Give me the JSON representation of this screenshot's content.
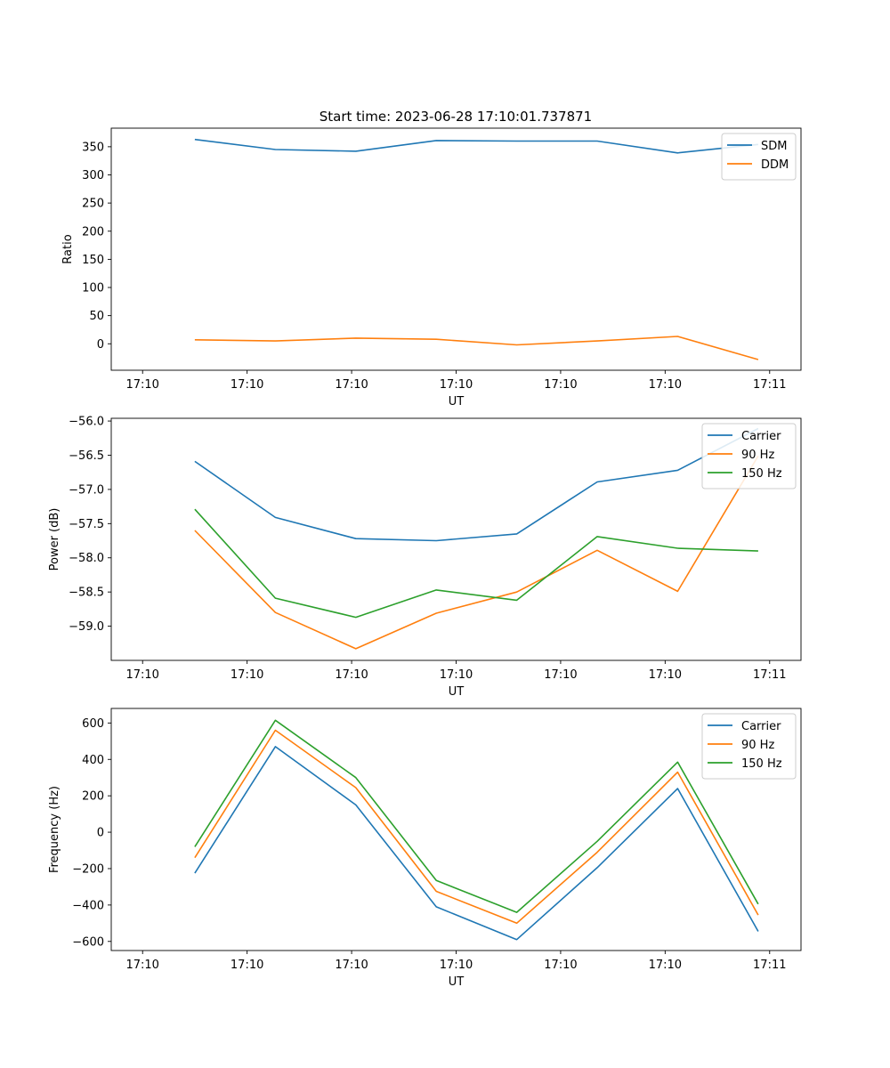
{
  "title": "Start time: 2023-06-28 17:10:01.737871",
  "chart_data": [
    {
      "type": "line",
      "xlabel": "UT",
      "ylabel": "Ratio",
      "x_tick_labels": [
        "17:10",
        "17:10",
        "17:10",
        "17:10",
        "17:10",
        "17:10",
        "17:11"
      ],
      "y_ticks": [
        0,
        50,
        100,
        150,
        200,
        250,
        300,
        350
      ],
      "ylim": [
        -47,
        383
      ],
      "legend_position": "top-right",
      "grid": false,
      "series": [
        {
          "name": "SDM",
          "color": "#1f77b4",
          "values": [
            363,
            345,
            342,
            361,
            360,
            360,
            339,
            354
          ]
        },
        {
          "name": "DDM",
          "color": "#ff7f0e",
          "values": [
            7,
            5,
            10,
            8,
            -2,
            5,
            13,
            -28
          ]
        }
      ]
    },
    {
      "type": "line",
      "xlabel": "UT",
      "ylabel": "Power (dB)",
      "x_tick_labels": [
        "17:10",
        "17:10",
        "17:10",
        "17:10",
        "17:10",
        "17:10",
        "17:11"
      ],
      "y_ticks": [
        -59.0,
        -58.5,
        -58.0,
        -57.5,
        -57.0,
        -56.5,
        -56.0
      ],
      "y_tick_labels": [
        "−59.0",
        "−58.5",
        "−58.0",
        "−57.5",
        "−57.0",
        "−56.5",
        "−56.0"
      ],
      "ylim": [
        -59.5,
        -55.96
      ],
      "legend_position": "top-right",
      "grid": false,
      "series": [
        {
          "name": "Carrier",
          "color": "#1f77b4",
          "values": [
            -56.59,
            -57.41,
            -57.72,
            -57.75,
            -57.65,
            -56.89,
            -56.72,
            -56.11
          ]
        },
        {
          "name": "90 Hz",
          "color": "#ff7f0e",
          "values": [
            -57.6,
            -58.8,
            -59.33,
            -58.81,
            -58.5,
            -57.89,
            -58.49,
            -56.51
          ]
        },
        {
          "name": "150 Hz",
          "color": "#2ca02c",
          "values": [
            -57.29,
            -58.59,
            -58.87,
            -58.47,
            -58.62,
            -57.69,
            -57.86,
            -57.9
          ]
        }
      ]
    },
    {
      "type": "line",
      "xlabel": "UT",
      "ylabel": "Frequency (Hz)",
      "x_tick_labels": [
        "17:10",
        "17:10",
        "17:10",
        "17:10",
        "17:10",
        "17:10",
        "17:11"
      ],
      "y_ticks": [
        -600,
        -400,
        -200,
        0,
        200,
        400,
        600
      ],
      "y_tick_labels": [
        "−600",
        "−400",
        "−200",
        "0",
        "200",
        "400",
        "600"
      ],
      "ylim": [
        -650,
        680
      ],
      "legend_position": "top-right",
      "grid": false,
      "series": [
        {
          "name": "Carrier",
          "color": "#1f77b4",
          "values": [
            -225,
            470,
            150,
            -410,
            -590,
            -195,
            240,
            -545
          ]
        },
        {
          "name": "90 Hz",
          "color": "#ff7f0e",
          "values": [
            -140,
            560,
            245,
            -325,
            -500,
            -110,
            330,
            -455
          ]
        },
        {
          "name": "150 Hz",
          "color": "#2ca02c",
          "values": [
            -80,
            615,
            300,
            -265,
            -440,
            -50,
            385,
            -395
          ]
        }
      ]
    }
  ]
}
